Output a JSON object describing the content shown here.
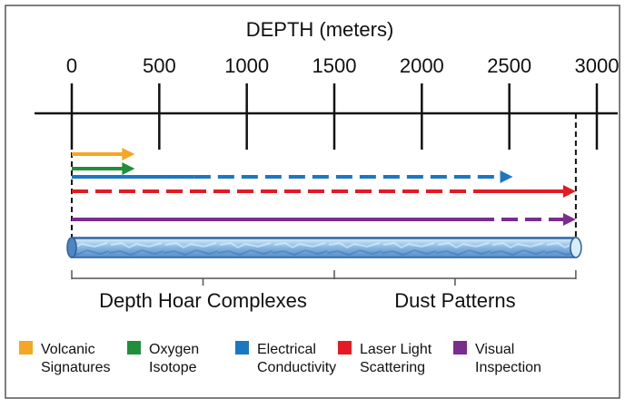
{
  "axis": {
    "title": "DEPTH (meters)",
    "ticks": [
      0,
      500,
      1000,
      1500,
      2000,
      2500,
      3000
    ],
    "range": [
      0,
      3000
    ]
  },
  "core_marker_depth": 2880,
  "methods": [
    {
      "key": "volcanic",
      "label_lines": [
        "Volcanic",
        "Signatures"
      ],
      "color": "#f5a623",
      "solid_to": 200,
      "dashed_to": 360
    },
    {
      "key": "oxygen",
      "label_lines": [
        "Oxygen",
        "Isotope"
      ],
      "color": "#1f8f3a",
      "solid_to": 360,
      "dashed_to": null
    },
    {
      "key": "electrical",
      "label_lines": [
        "Electrical",
        "Conductivity"
      ],
      "color": "#1a78c2",
      "solid_to": 700,
      "dashed_to": 2520
    },
    {
      "key": "laser",
      "label_lines": [
        "Laser Light",
        "Scattering"
      ],
      "color": "#e31b23",
      "solid_from": 2320,
      "solid_to": 2880,
      "dashed_to": 2320,
      "style": "dashed-then-solid"
    },
    {
      "key": "visual",
      "label_lines": [
        "Visual",
        "Inspection"
      ],
      "color": "#7b2c8f",
      "solid_to": 2320,
      "dashed_to": 2880
    }
  ],
  "sections": [
    {
      "label": "Depth Hoar Complexes",
      "from": 0,
      "to": 1500
    },
    {
      "label": "Dust Patterns",
      "from": 1500,
      "to": 2880
    }
  ]
}
